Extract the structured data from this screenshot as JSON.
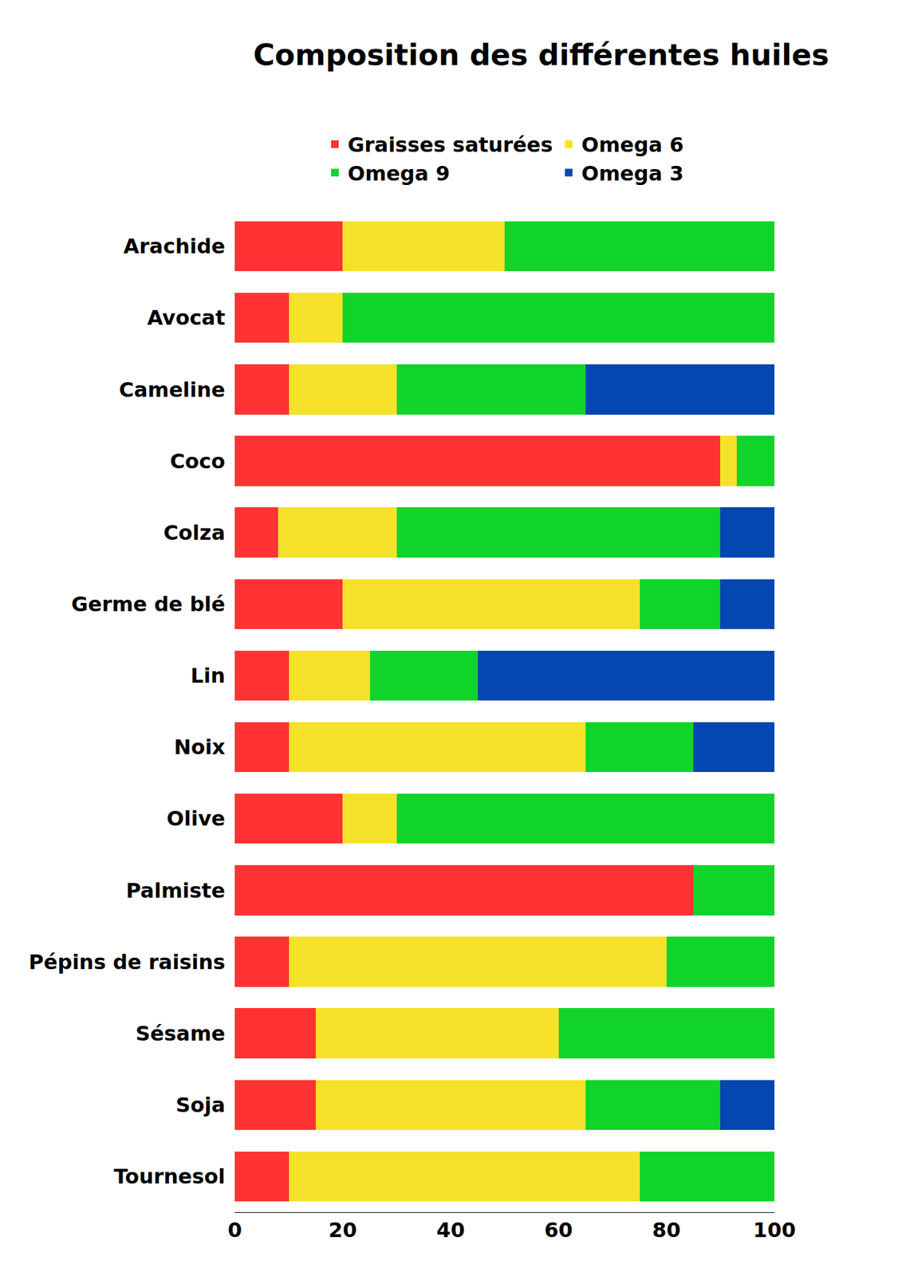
{
  "chart_data": {
    "type": "bar",
    "title": "Composition des différentes huiles",
    "orientation": "horizontal",
    "stacked": true,
    "legend": "top",
    "grid": false,
    "categories": [
      "Arachide",
      "Avocat",
      "Cameline",
      "Coco",
      "Colza",
      "Germe de blé",
      "Lin",
      "Noix",
      "Olive",
      "Palmiste",
      "Pépins de raisins",
      "Sésame",
      "Soja",
      "Tournesol"
    ],
    "series": [
      {
        "name": "Graisses saturées",
        "color": "#ff3333",
        "values": [
          20,
          10,
          10,
          90,
          8,
          20,
          10,
          10,
          20,
          85,
          10,
          15,
          15,
          10
        ]
      },
      {
        "name": "Omega 6",
        "color": "#f5e12a",
        "values": [
          30,
          10,
          20,
          3,
          22,
          55,
          15,
          55,
          10,
          0,
          70,
          45,
          50,
          65
        ]
      },
      {
        "name": "Omega 9",
        "color": "#11d42a",
        "values": [
          50,
          80,
          35,
          7,
          60,
          15,
          20,
          20,
          70,
          15,
          20,
          40,
          25,
          25
        ]
      },
      {
        "name": "Omega 3",
        "color": "#0447b0",
        "values": [
          0,
          0,
          35,
          0,
          10,
          10,
          55,
          15,
          0,
          0,
          0,
          0,
          10,
          0
        ]
      }
    ],
    "xlim": [
      0,
      100
    ],
    "xticks": [
      0,
      20,
      40,
      60,
      80,
      100
    ]
  }
}
